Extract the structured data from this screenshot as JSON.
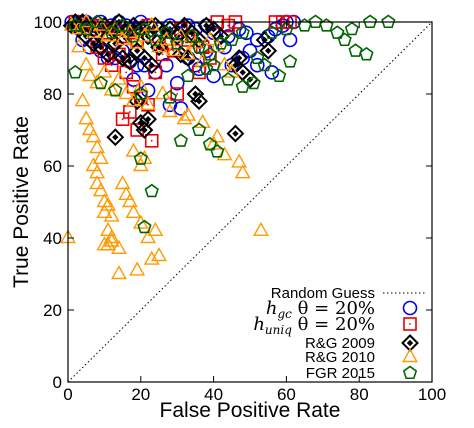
{
  "chart_data": {
    "type": "scatter",
    "xlabel": "False Positive Rate",
    "ylabel": "True Positive Rate",
    "xlim": [
      0,
      100
    ],
    "ylim": [
      0,
      100
    ],
    "xticks": [
      0,
      20,
      40,
      60,
      80,
      100
    ],
    "yticks": [
      0,
      20,
      40,
      60,
      80,
      100
    ],
    "grid": false,
    "legend_position": "bottom-right",
    "reference_line": {
      "name": "Random Guess",
      "style": "dotted",
      "color": "#000000"
    },
    "series": [
      {
        "name": "h_gc θ = 20%",
        "label_main": "h",
        "label_sub": "gc",
        "label_rest": " θ = 20%",
        "marker": "circle",
        "color": "#0000ee",
        "points": [
          [
            1,
            100
          ],
          [
            3,
            100
          ],
          [
            5,
            100
          ],
          [
            7,
            99
          ],
          [
            9,
            100
          ],
          [
            12,
            99
          ],
          [
            14,
            100
          ],
          [
            16,
            99
          ],
          [
            18,
            98
          ],
          [
            20,
            100
          ],
          [
            22,
            99
          ],
          [
            25,
            98
          ],
          [
            28,
            99
          ],
          [
            30,
            97
          ],
          [
            33,
            99
          ],
          [
            35,
            98
          ],
          [
            38,
            99
          ],
          [
            40,
            97
          ],
          [
            44,
            96
          ],
          [
            47,
            98
          ],
          [
            49,
            97
          ],
          [
            52,
            95
          ],
          [
            55,
            96
          ],
          [
            57,
            98
          ],
          [
            59,
            99
          ],
          [
            61,
            95
          ],
          [
            4,
            95
          ],
          [
            6,
            93
          ],
          [
            9,
            92
          ],
          [
            11,
            90
          ],
          [
            13,
            90
          ],
          [
            15,
            92
          ],
          [
            17,
            89
          ],
          [
            19,
            88
          ],
          [
            21,
            88
          ],
          [
            24,
            86
          ],
          [
            27,
            88
          ],
          [
            30,
            83
          ],
          [
            33,
            90
          ],
          [
            36,
            87
          ],
          [
            40,
            85
          ],
          [
            45,
            88
          ],
          [
            48,
            90
          ],
          [
            52,
            88
          ],
          [
            56,
            86
          ],
          [
            18,
            84
          ],
          [
            22,
            81
          ],
          [
            28,
            77
          ],
          [
            31,
            76
          ],
          [
            35,
            88
          ],
          [
            38,
            92
          ],
          [
            43,
            93
          ],
          [
            50,
            92
          ],
          [
            60,
            100
          ],
          [
            62,
            100
          ]
        ]
      },
      {
        "name": "h_uniq θ = 20%",
        "label_main": "h",
        "label_sub": "uniq",
        "label_rest": " θ = 20%",
        "marker": "square",
        "color": "#ee0000",
        "points": [
          [
            2,
            100
          ],
          [
            4,
            99
          ],
          [
            6,
            98
          ],
          [
            9,
            99
          ],
          [
            11,
            97
          ],
          [
            13,
            98
          ],
          [
            15,
            96
          ],
          [
            17,
            97
          ],
          [
            19,
            95
          ],
          [
            22,
            99
          ],
          [
            25,
            96
          ],
          [
            27,
            94
          ],
          [
            29,
            92
          ],
          [
            31,
            98
          ],
          [
            34,
            96
          ],
          [
            37,
            93
          ],
          [
            39,
            90
          ],
          [
            41,
            100
          ],
          [
            44,
            99
          ],
          [
            46,
            100
          ],
          [
            57,
            100
          ],
          [
            59,
            100
          ],
          [
            61,
            100
          ],
          [
            8,
            93
          ],
          [
            10,
            90
          ],
          [
            12,
            88
          ],
          [
            14,
            91
          ],
          [
            16,
            86
          ],
          [
            18,
            82
          ],
          [
            20,
            79
          ],
          [
            22,
            77
          ],
          [
            24,
            86
          ],
          [
            26,
            91
          ],
          [
            30,
            80
          ],
          [
            33,
            95
          ],
          [
            15,
            73
          ],
          [
            17,
            75
          ],
          [
            19,
            70
          ],
          [
            23,
            67
          ],
          [
            36,
            86
          ]
        ]
      },
      {
        "name": "R&G 2009",
        "label_main": "R&G 2009",
        "marker": "diamond",
        "color": "#000000",
        "points": [
          [
            1,
            99
          ],
          [
            2,
            100
          ],
          [
            3,
            98
          ],
          [
            4,
            100
          ],
          [
            6,
            99
          ],
          [
            8,
            97
          ],
          [
            10,
            99
          ],
          [
            12,
            98
          ],
          [
            14,
            100
          ],
          [
            16,
            97
          ],
          [
            18,
            99
          ],
          [
            20,
            98
          ],
          [
            22,
            96
          ],
          [
            24,
            99
          ],
          [
            26,
            97
          ],
          [
            28,
            98
          ],
          [
            30,
            96
          ],
          [
            32,
            99
          ],
          [
            34,
            97
          ],
          [
            36,
            95
          ],
          [
            38,
            99
          ],
          [
            40,
            98
          ],
          [
            42,
            96
          ],
          [
            5,
            96
          ],
          [
            7,
            94
          ],
          [
            9,
            93
          ],
          [
            11,
            91
          ],
          [
            13,
            94
          ],
          [
            15,
            90
          ],
          [
            17,
            89
          ],
          [
            19,
            92
          ],
          [
            21,
            90
          ],
          [
            23,
            88
          ],
          [
            25,
            93
          ],
          [
            31,
            91
          ],
          [
            33,
            90
          ],
          [
            35,
            80
          ],
          [
            36,
            78
          ],
          [
            46,
            88
          ],
          [
            47,
            90
          ],
          [
            48,
            86
          ],
          [
            50,
            84
          ],
          [
            54,
            95
          ],
          [
            55,
            92
          ],
          [
            20,
            72
          ],
          [
            21,
            70
          ],
          [
            22,
            73
          ],
          [
            13,
            68
          ],
          [
            19,
            78
          ],
          [
            46,
            69
          ]
        ]
      },
      {
        "name": "R&G 2010",
        "label_main": "R&G 2010",
        "marker": "triangle",
        "color": "#ff9900",
        "points": [
          [
            1,
            99
          ],
          [
            3,
            98
          ],
          [
            5,
            100
          ],
          [
            7,
            97
          ],
          [
            9,
            99
          ],
          [
            11,
            96
          ],
          [
            13,
            98
          ],
          [
            15,
            95
          ],
          [
            17,
            97
          ],
          [
            19,
            94
          ],
          [
            21,
            96
          ],
          [
            23,
            99
          ],
          [
            25,
            93
          ],
          [
            27,
            95
          ],
          [
            29,
            92
          ],
          [
            31,
            96
          ],
          [
            33,
            91
          ],
          [
            35,
            94
          ],
          [
            37,
            89
          ],
          [
            39,
            95
          ],
          [
            41,
            93
          ],
          [
            43,
            88
          ],
          [
            45,
            86
          ],
          [
            3,
            93
          ],
          [
            5,
            88
          ],
          [
            6,
            85
          ],
          [
            8,
            83
          ],
          [
            10,
            86
          ],
          [
            12,
            81
          ],
          [
            14,
            84
          ],
          [
            16,
            80
          ],
          [
            18,
            78
          ],
          [
            20,
            82
          ],
          [
            22,
            77
          ],
          [
            26,
            80
          ],
          [
            28,
            75
          ],
          [
            32,
            73
          ],
          [
            37,
            72
          ],
          [
            40,
            66
          ],
          [
            41,
            68
          ],
          [
            43,
            63
          ],
          [
            47,
            61
          ],
          [
            48,
            58
          ],
          [
            4,
            78
          ],
          [
            5,
            73
          ],
          [
            6,
            70
          ],
          [
            7,
            68
          ],
          [
            8,
            65
          ],
          [
            9,
            62
          ],
          [
            7,
            60
          ],
          [
            8,
            58
          ],
          [
            8,
            55
          ],
          [
            9,
            53
          ],
          [
            10,
            50
          ],
          [
            11,
            49
          ],
          [
            12,
            46
          ],
          [
            10,
            47
          ],
          [
            11,
            42
          ],
          [
            12,
            40
          ],
          [
            11,
            38
          ],
          [
            10,
            38
          ],
          [
            12,
            39
          ],
          [
            14,
            37
          ],
          [
            15,
            55
          ],
          [
            16,
            52
          ],
          [
            17,
            50
          ],
          [
            18,
            47
          ],
          [
            20,
            44
          ],
          [
            22,
            40
          ],
          [
            24,
            42
          ],
          [
            25,
            35
          ],
          [
            23,
            34
          ],
          [
            19,
            31
          ],
          [
            14,
            30
          ],
          [
            20,
            60
          ],
          [
            18,
            64
          ],
          [
            21,
            62
          ],
          [
            0,
            40
          ],
          [
            53,
            42
          ],
          [
            33,
            74
          ]
        ]
      },
      {
        "name": "FGR 2015",
        "label_main": "FGR 2015",
        "marker": "pentagon",
        "color": "#006600",
        "points": [
          [
            2,
            99
          ],
          [
            5,
            98
          ],
          [
            8,
            100
          ],
          [
            12,
            97
          ],
          [
            15,
            99
          ],
          [
            18,
            96
          ],
          [
            21,
            98
          ],
          [
            24,
            95
          ],
          [
            27,
            97
          ],
          [
            30,
            94
          ],
          [
            34,
            96
          ],
          [
            36,
            93
          ],
          [
            39,
            91
          ],
          [
            42,
            94
          ],
          [
            45,
            95
          ],
          [
            48,
            97
          ],
          [
            52,
            90
          ],
          [
            54,
            88
          ],
          [
            58,
            85
          ],
          [
            61,
            89
          ],
          [
            65,
            99
          ],
          [
            68,
            100
          ],
          [
            71,
            99
          ],
          [
            74,
            97
          ],
          [
            76,
            95
          ],
          [
            78,
            98
          ],
          [
            83,
            100
          ],
          [
            88,
            100
          ],
          [
            79,
            92
          ],
          [
            82,
            91
          ],
          [
            2,
            86
          ],
          [
            9,
            83
          ],
          [
            13,
            81
          ],
          [
            20,
            80
          ],
          [
            28,
            79
          ],
          [
            33,
            85
          ],
          [
            38,
            87
          ],
          [
            40,
            88
          ],
          [
            44,
            84
          ],
          [
            48,
            82
          ],
          [
            51,
            83
          ],
          [
            36,
            70
          ],
          [
            39,
            66
          ],
          [
            41,
            64
          ],
          [
            23,
            53
          ],
          [
            20,
            62
          ],
          [
            31,
            67
          ],
          [
            21,
            43
          ],
          [
            56,
            97
          ],
          [
            60,
            98
          ]
        ]
      }
    ]
  }
}
